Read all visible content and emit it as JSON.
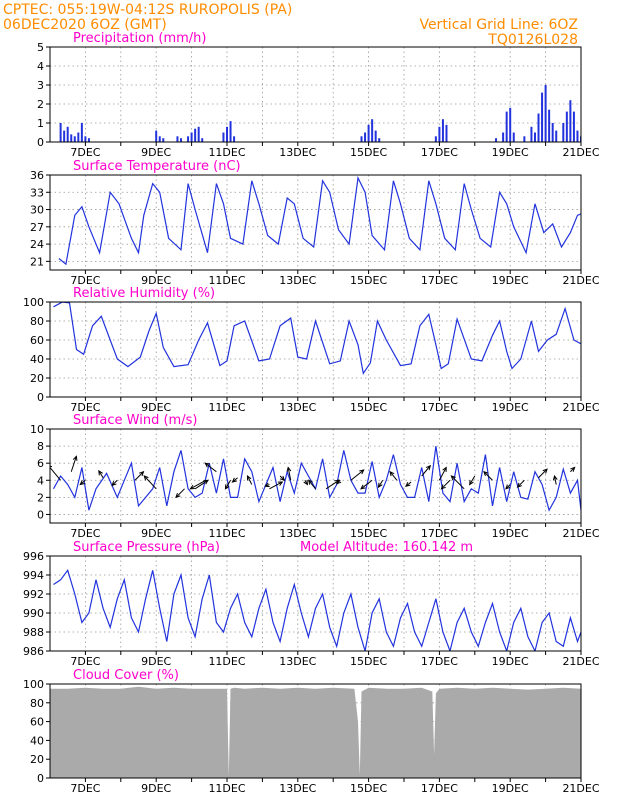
{
  "header": {
    "line1_left": "CPTEC:   055:19W-04:12S   RUROPOLIS (PA)",
    "line2_left": "06DEC2020 6OZ (GMT)",
    "line1_right": "Vertical Grid Line: 6OZ",
    "line2_right": "TQ0126L028"
  },
  "colors": {
    "line": "#2233dd",
    "bar": "#2233dd",
    "cloud": "#aaaaaa",
    "header": "#ff8c00",
    "title": "#ff00cc"
  },
  "chart_data": [
    {
      "type": "bar",
      "title": "Precipitation (mm/h)",
      "ylim": [
        0,
        5
      ],
      "yticks": [
        0,
        1,
        2,
        3,
        4,
        5
      ],
      "xticks": [
        "7DEC",
        "9DEC",
        "11DEC",
        "13DEC",
        "15DEC",
        "17DEC",
        "19DEC",
        "21DEC"
      ],
      "bars": [
        [
          6.3,
          1.0
        ],
        [
          6.4,
          0.6
        ],
        [
          6.5,
          0.8
        ],
        [
          6.6,
          0.4
        ],
        [
          6.7,
          0.3
        ],
        [
          6.8,
          0.5
        ],
        [
          6.9,
          1.0
        ],
        [
          7.0,
          0.3
        ],
        [
          7.1,
          0.2
        ],
        [
          9.0,
          0.6
        ],
        [
          9.1,
          0.3
        ],
        [
          9.2,
          0.2
        ],
        [
          9.6,
          0.3
        ],
        [
          9.7,
          0.2
        ],
        [
          9.9,
          0.3
        ],
        [
          10.0,
          0.5
        ],
        [
          10.1,
          0.7
        ],
        [
          10.2,
          0.8
        ],
        [
          10.3,
          0.2
        ],
        [
          10.9,
          0.5
        ],
        [
          11.0,
          0.8
        ],
        [
          11.1,
          1.1
        ],
        [
          11.2,
          0.3
        ],
        [
          14.8,
          0.3
        ],
        [
          14.9,
          0.5
        ],
        [
          15.0,
          0.9
        ],
        [
          15.1,
          1.2
        ],
        [
          15.2,
          0.6
        ],
        [
          15.3,
          0.2
        ],
        [
          16.9,
          0.3
        ],
        [
          17.0,
          0.8
        ],
        [
          17.1,
          1.2
        ],
        [
          17.2,
          0.9
        ],
        [
          18.6,
          0.2
        ],
        [
          18.8,
          0.5
        ],
        [
          18.9,
          1.6
        ],
        [
          19.0,
          1.8
        ],
        [
          19.1,
          0.5
        ],
        [
          19.4,
          0.3
        ],
        [
          19.6,
          0.8
        ],
        [
          19.7,
          0.5
        ],
        [
          19.8,
          1.5
        ],
        [
          19.9,
          2.6
        ],
        [
          20.0,
          3.0
        ],
        [
          20.1,
          1.7
        ],
        [
          20.2,
          1.0
        ],
        [
          20.3,
          0.6
        ],
        [
          20.5,
          1.0
        ],
        [
          20.6,
          1.6
        ],
        [
          20.7,
          2.2
        ],
        [
          20.8,
          1.6
        ],
        [
          20.9,
          0.6
        ],
        [
          21.0,
          0.3
        ]
      ]
    },
    {
      "type": "line",
      "title": "Surface Temperature (nC)",
      "ylim": [
        19.5,
        36
      ],
      "yticks": [
        21,
        24,
        27,
        30,
        33,
        36
      ],
      "xticks": [
        "7DEC",
        "9DEC",
        "11DEC",
        "13DEC",
        "15DEC",
        "17DEC",
        "19DEC",
        "21DEC"
      ],
      "series": [
        {
          "x": [
            6.25,
            6.45,
            6.7,
            6.9,
            7.1,
            7.4,
            7.7,
            7.95,
            8.3,
            8.5,
            8.65,
            8.9,
            9.1,
            9.35,
            9.7,
            9.9,
            10.1,
            10.45,
            10.7,
            10.9,
            11.1,
            11.45,
            11.7,
            11.9,
            12.15,
            12.45,
            12.7,
            12.9,
            13.15,
            13.45,
            13.7,
            13.9,
            14.15,
            14.45,
            14.7,
            14.9,
            15.1,
            15.45,
            15.7,
            15.9,
            16.15,
            16.45,
            16.7,
            16.9,
            17.15,
            17.45,
            17.7,
            17.9,
            18.15,
            18.45,
            18.7,
            18.9,
            19.1,
            19.45,
            19.7,
            19.95,
            20.2,
            20.45,
            20.7,
            20.9,
            21.1
          ],
          "y": [
            21.5,
            20.5,
            29,
            30.5,
            27,
            22.5,
            33,
            31,
            25,
            22.5,
            29,
            34.5,
            33,
            25,
            23,
            34.5,
            30,
            22.5,
            34.5,
            31,
            25,
            24,
            35,
            31,
            25.5,
            24,
            32,
            31,
            25,
            23.5,
            35,
            33,
            26.5,
            24,
            35.5,
            33,
            25.5,
            23,
            35,
            31,
            25,
            23,
            35,
            31,
            25,
            23,
            34.5,
            30,
            25,
            23.5,
            33,
            31,
            27,
            22.5,
            31,
            26,
            27.5,
            23.5,
            26,
            29,
            29.5
          ]
        }
      ]
    },
    {
      "type": "line",
      "title": "Relative Humidity (%)",
      "ylim": [
        0,
        100
      ],
      "yticks": [
        0,
        20,
        40,
        60,
        80,
        100
      ],
      "xticks": [
        "7DEC",
        "9DEC",
        "11DEC",
        "13DEC",
        "15DEC",
        "17DEC",
        "19DEC",
        "21DEC"
      ],
      "series": [
        {
          "x": [
            6.1,
            6.35,
            6.55,
            6.75,
            6.95,
            7.2,
            7.45,
            7.9,
            8.2,
            8.55,
            8.8,
            9.0,
            9.2,
            9.5,
            9.9,
            10.2,
            10.45,
            10.8,
            11.0,
            11.2,
            11.5,
            11.9,
            12.2,
            12.5,
            12.8,
            13.0,
            13.25,
            13.5,
            13.9,
            14.2,
            14.45,
            14.7,
            14.85,
            15.05,
            15.25,
            15.5,
            15.9,
            16.2,
            16.45,
            16.7,
            16.9,
            17.05,
            17.25,
            17.5,
            17.9,
            18.2,
            18.5,
            18.7,
            18.9,
            19.05,
            19.3,
            19.6,
            19.8,
            20.05,
            20.3,
            20.55,
            20.8,
            21.05
          ],
          "y": [
            95,
            100,
            99,
            50,
            45,
            75,
            85,
            40,
            32,
            42,
            70,
            88,
            52,
            32,
            34,
            60,
            78,
            33,
            38,
            75,
            80,
            38,
            40,
            75,
            83,
            42,
            40,
            80,
            35,
            38,
            80,
            55,
            25,
            36,
            80,
            60,
            33,
            35,
            75,
            87,
            55,
            30,
            35,
            82,
            40,
            38,
            65,
            80,
            48,
            30,
            40,
            80,
            48,
            60,
            66,
            93,
            60,
            55
          ]
        }
      ]
    },
    {
      "type": "line",
      "title": "Surface Wind (m/s)",
      "ylim": [
        -1,
        10
      ],
      "yticks": [
        0,
        2,
        4,
        6,
        8,
        10
      ],
      "xticks": [
        "7DEC",
        "9DEC",
        "11DEC",
        "13DEC",
        "15DEC",
        "17DEC",
        "19DEC",
        "21DEC"
      ],
      "series": [
        {
          "x": [
            6.1,
            6.3,
            6.5,
            6.7,
            6.9,
            7.1,
            7.3,
            7.6,
            7.9,
            8.1,
            8.3,
            8.5,
            8.7,
            8.9,
            9.1,
            9.3,
            9.5,
            9.7,
            9.9,
            10.1,
            10.3,
            10.5,
            10.7,
            10.9,
            11.1,
            11.3,
            11.5,
            11.7,
            11.9,
            12.1,
            12.3,
            12.5,
            12.7,
            12.9,
            13.1,
            13.3,
            13.5,
            13.7,
            13.9,
            14.1,
            14.3,
            14.5,
            14.7,
            14.9,
            15.1,
            15.3,
            15.5,
            15.7,
            15.9,
            16.1,
            16.3,
            16.5,
            16.7,
            16.9,
            17.1,
            17.3,
            17.5,
            17.7,
            17.9,
            18.1,
            18.3,
            18.5,
            18.7,
            18.9,
            19.1,
            19.3,
            19.5,
            19.7,
            19.9,
            20.1,
            20.3,
            20.5,
            20.7,
            20.9,
            21.0
          ],
          "y": [
            3,
            4.5,
            3.5,
            2,
            5.5,
            0.5,
            3,
            4.8,
            2,
            4,
            6,
            1,
            2,
            3,
            5.5,
            1,
            5,
            7.5,
            3,
            2,
            2.5,
            6,
            2.5,
            6.5,
            2,
            2,
            6.5,
            5,
            1.5,
            3.5,
            5.5,
            1.5,
            5,
            2.5,
            6,
            4.5,
            3,
            6.5,
            2,
            3.5,
            7.5,
            4,
            2.5,
            2.5,
            6.2,
            2,
            4,
            7,
            3.5,
            2,
            2,
            5.5,
            1.5,
            8,
            2.5,
            1.5,
            6,
            1.5,
            3,
            2.5,
            7,
            1,
            5.5,
            1.5,
            5,
            2,
            1.8,
            5,
            3.5,
            0.5,
            2,
            5.3,
            2.5,
            4,
            0.5
          ]
        }
      ],
      "arrows": [
        [
          6.3,
          4,
          -1.5,
          1.8
        ],
        [
          6.6,
          5,
          0.6,
          1.8
        ],
        [
          7.0,
          4,
          -0.6,
          -0.5
        ],
        [
          7.5,
          4.3,
          -0.5,
          0.8
        ],
        [
          7.9,
          4,
          -0.6,
          -0.6
        ],
        [
          8.4,
          4,
          1,
          1
        ],
        [
          9.0,
          3,
          -1.4,
          1.5
        ],
        [
          9.8,
          3,
          -1,
          -1
        ],
        [
          10.1,
          3,
          1.5,
          1
        ],
        [
          10.4,
          4,
          -1.8,
          -1
        ],
        [
          10.7,
          5,
          -1.3,
          1
        ],
        [
          11.1,
          4,
          -0.6,
          -1
        ],
        [
          11.3,
          4.3,
          -0.6,
          -0.5
        ],
        [
          11.7,
          3.5,
          -0.5,
          1
        ],
        [
          12.2,
          3.5,
          -0.5,
          -0.2
        ],
        [
          12.2,
          3,
          1.5,
          0.8
        ],
        [
          12.5,
          4.5,
          0.5,
          -0.5
        ],
        [
          12.8,
          4,
          -0.3,
          1.5
        ],
        [
          13.2,
          4,
          0.3,
          -0.5
        ],
        [
          13.5,
          3,
          -0.8,
          1
        ],
        [
          13.8,
          3,
          1.5,
          1
        ],
        [
          14.2,
          4,
          -0.4,
          -0.4
        ],
        [
          14.5,
          4,
          1.5,
          1.2
        ],
        [
          15.1,
          4,
          -1.3,
          -1
        ],
        [
          15.4,
          4,
          -0.5,
          -0.8
        ],
        [
          15.8,
          4,
          -0.8,
          1
        ],
        [
          16.2,
          3.8,
          -0.6,
          -0.5
        ],
        [
          16.5,
          4.5,
          1,
          1.2
        ],
        [
          17.0,
          4,
          0.8,
          1.5
        ],
        [
          17.3,
          4,
          -1,
          -1
        ],
        [
          17.7,
          3,
          -1.5,
          1.5
        ],
        [
          18.0,
          4.5,
          -0.6,
          -1
        ],
        [
          18.5,
          4,
          -1,
          1
        ],
        [
          19.0,
          3.5,
          -0.5,
          -0.5
        ],
        [
          19.4,
          4,
          -0.8,
          -0.8
        ],
        [
          19.8,
          4.3,
          1,
          1
        ],
        [
          20.3,
          3.5,
          -0.2,
          1
        ],
        [
          20.7,
          5,
          0.5,
          0.5
        ]
      ]
    },
    {
      "type": "line",
      "title": "Surface Pressure (hPa)",
      "annotation": "Model Altitude: 160.142 m",
      "ylim": [
        986,
        996
      ],
      "yticks": [
        986,
        988,
        990,
        992,
        994,
        996
      ],
      "xticks": [
        "7DEC",
        "9DEC",
        "11DEC",
        "13DEC",
        "15DEC",
        "17DEC",
        "19DEC",
        "21DEC"
      ],
      "series": [
        {
          "x": [
            6.1,
            6.3,
            6.5,
            6.7,
            6.9,
            7.1,
            7.3,
            7.5,
            7.7,
            7.9,
            8.1,
            8.3,
            8.5,
            8.7,
            8.9,
            9.1,
            9.3,
            9.5,
            9.7,
            9.9,
            10.1,
            10.3,
            10.5,
            10.7,
            10.9,
            11.1,
            11.3,
            11.5,
            11.7,
            11.9,
            12.1,
            12.3,
            12.5,
            12.7,
            12.9,
            13.1,
            13.3,
            13.5,
            13.7,
            13.9,
            14.1,
            14.3,
            14.5,
            14.7,
            14.9,
            15.1,
            15.3,
            15.5,
            15.7,
            15.9,
            16.1,
            16.3,
            16.5,
            16.7,
            16.9,
            17.1,
            17.3,
            17.5,
            17.7,
            17.9,
            18.1,
            18.3,
            18.5,
            18.7,
            18.9,
            19.1,
            19.3,
            19.5,
            19.7,
            19.9,
            20.1,
            20.3,
            20.5,
            20.7,
            20.9,
            21.0
          ],
          "y": [
            993,
            993.5,
            994.5,
            992,
            989,
            990,
            993.5,
            990.5,
            988.5,
            991.5,
            993.5,
            989.5,
            988,
            991.5,
            994.5,
            990.5,
            987,
            992,
            994,
            989.5,
            987.5,
            991.5,
            994,
            989,
            988,
            990.5,
            992,
            989,
            987.5,
            990.5,
            992.5,
            989,
            987,
            990.5,
            993,
            990,
            987.5,
            990.5,
            992,
            988.5,
            986.5,
            990,
            992,
            988.5,
            986,
            990,
            991.5,
            988,
            986.5,
            989.5,
            991,
            988,
            986.5,
            989,
            991.5,
            988,
            986,
            989,
            990.5,
            988,
            986.5,
            989,
            991,
            988,
            986,
            989,
            990.5,
            987.5,
            986,
            989,
            990,
            987,
            986.5,
            989.5,
            987,
            988
          ]
        }
      ]
    },
    {
      "type": "area",
      "title": "Cloud Cover (%)",
      "ylim": [
        0,
        100
      ],
      "yticks": [
        0,
        20,
        40,
        60,
        80,
        100
      ],
      "xticks": [
        "7DEC",
        "9DEC",
        "11DEC",
        "13DEC",
        "15DEC",
        "17DEC",
        "19DEC",
        "21DEC"
      ],
      "series": [
        {
          "x": [
            6.0,
            6.5,
            7.0,
            7.5,
            8.0,
            8.5,
            9.0,
            9.5,
            10.0,
            10.5,
            11.0,
            11.05,
            11.1,
            11.2,
            11.5,
            12.0,
            12.5,
            13.0,
            13.5,
            14.0,
            14.6,
            14.7,
            14.75,
            14.8,
            15.0,
            15.5,
            16.0,
            16.5,
            16.8,
            16.85,
            16.9,
            17.0,
            17.5,
            18.0,
            18.5,
            19.0,
            19.5,
            20.0,
            20.5,
            21.0
          ],
          "y": [
            95,
            95,
            96,
            95,
            95,
            97,
            95,
            96,
            95,
            95,
            95,
            2,
            95,
            96,
            95,
            96,
            95,
            96,
            95,
            96,
            95,
            60,
            3,
            92,
            96,
            95,
            95,
            96,
            92,
            25,
            90,
            95,
            96,
            95,
            96,
            95,
            94,
            95,
            96,
            95
          ]
        }
      ]
    }
  ]
}
